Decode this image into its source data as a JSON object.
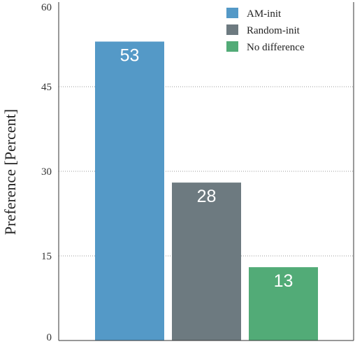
{
  "chart_data": {
    "type": "bar",
    "title": "",
    "xlabel": "",
    "ylabel": "Preference [Percent]",
    "ylim": [
      0,
      60
    ],
    "yticks": [
      0,
      15,
      30,
      45,
      60
    ],
    "grid": "horizontal dotted",
    "legend_position": "top-right",
    "series": [
      {
        "name": "AM-init",
        "value": 53,
        "color": "#5499c7"
      },
      {
        "name": "Random-init",
        "value": 28,
        "color": "#6d7a80"
      },
      {
        "name": "No difference",
        "value": 13,
        "color": "#52ab77"
      }
    ]
  }
}
